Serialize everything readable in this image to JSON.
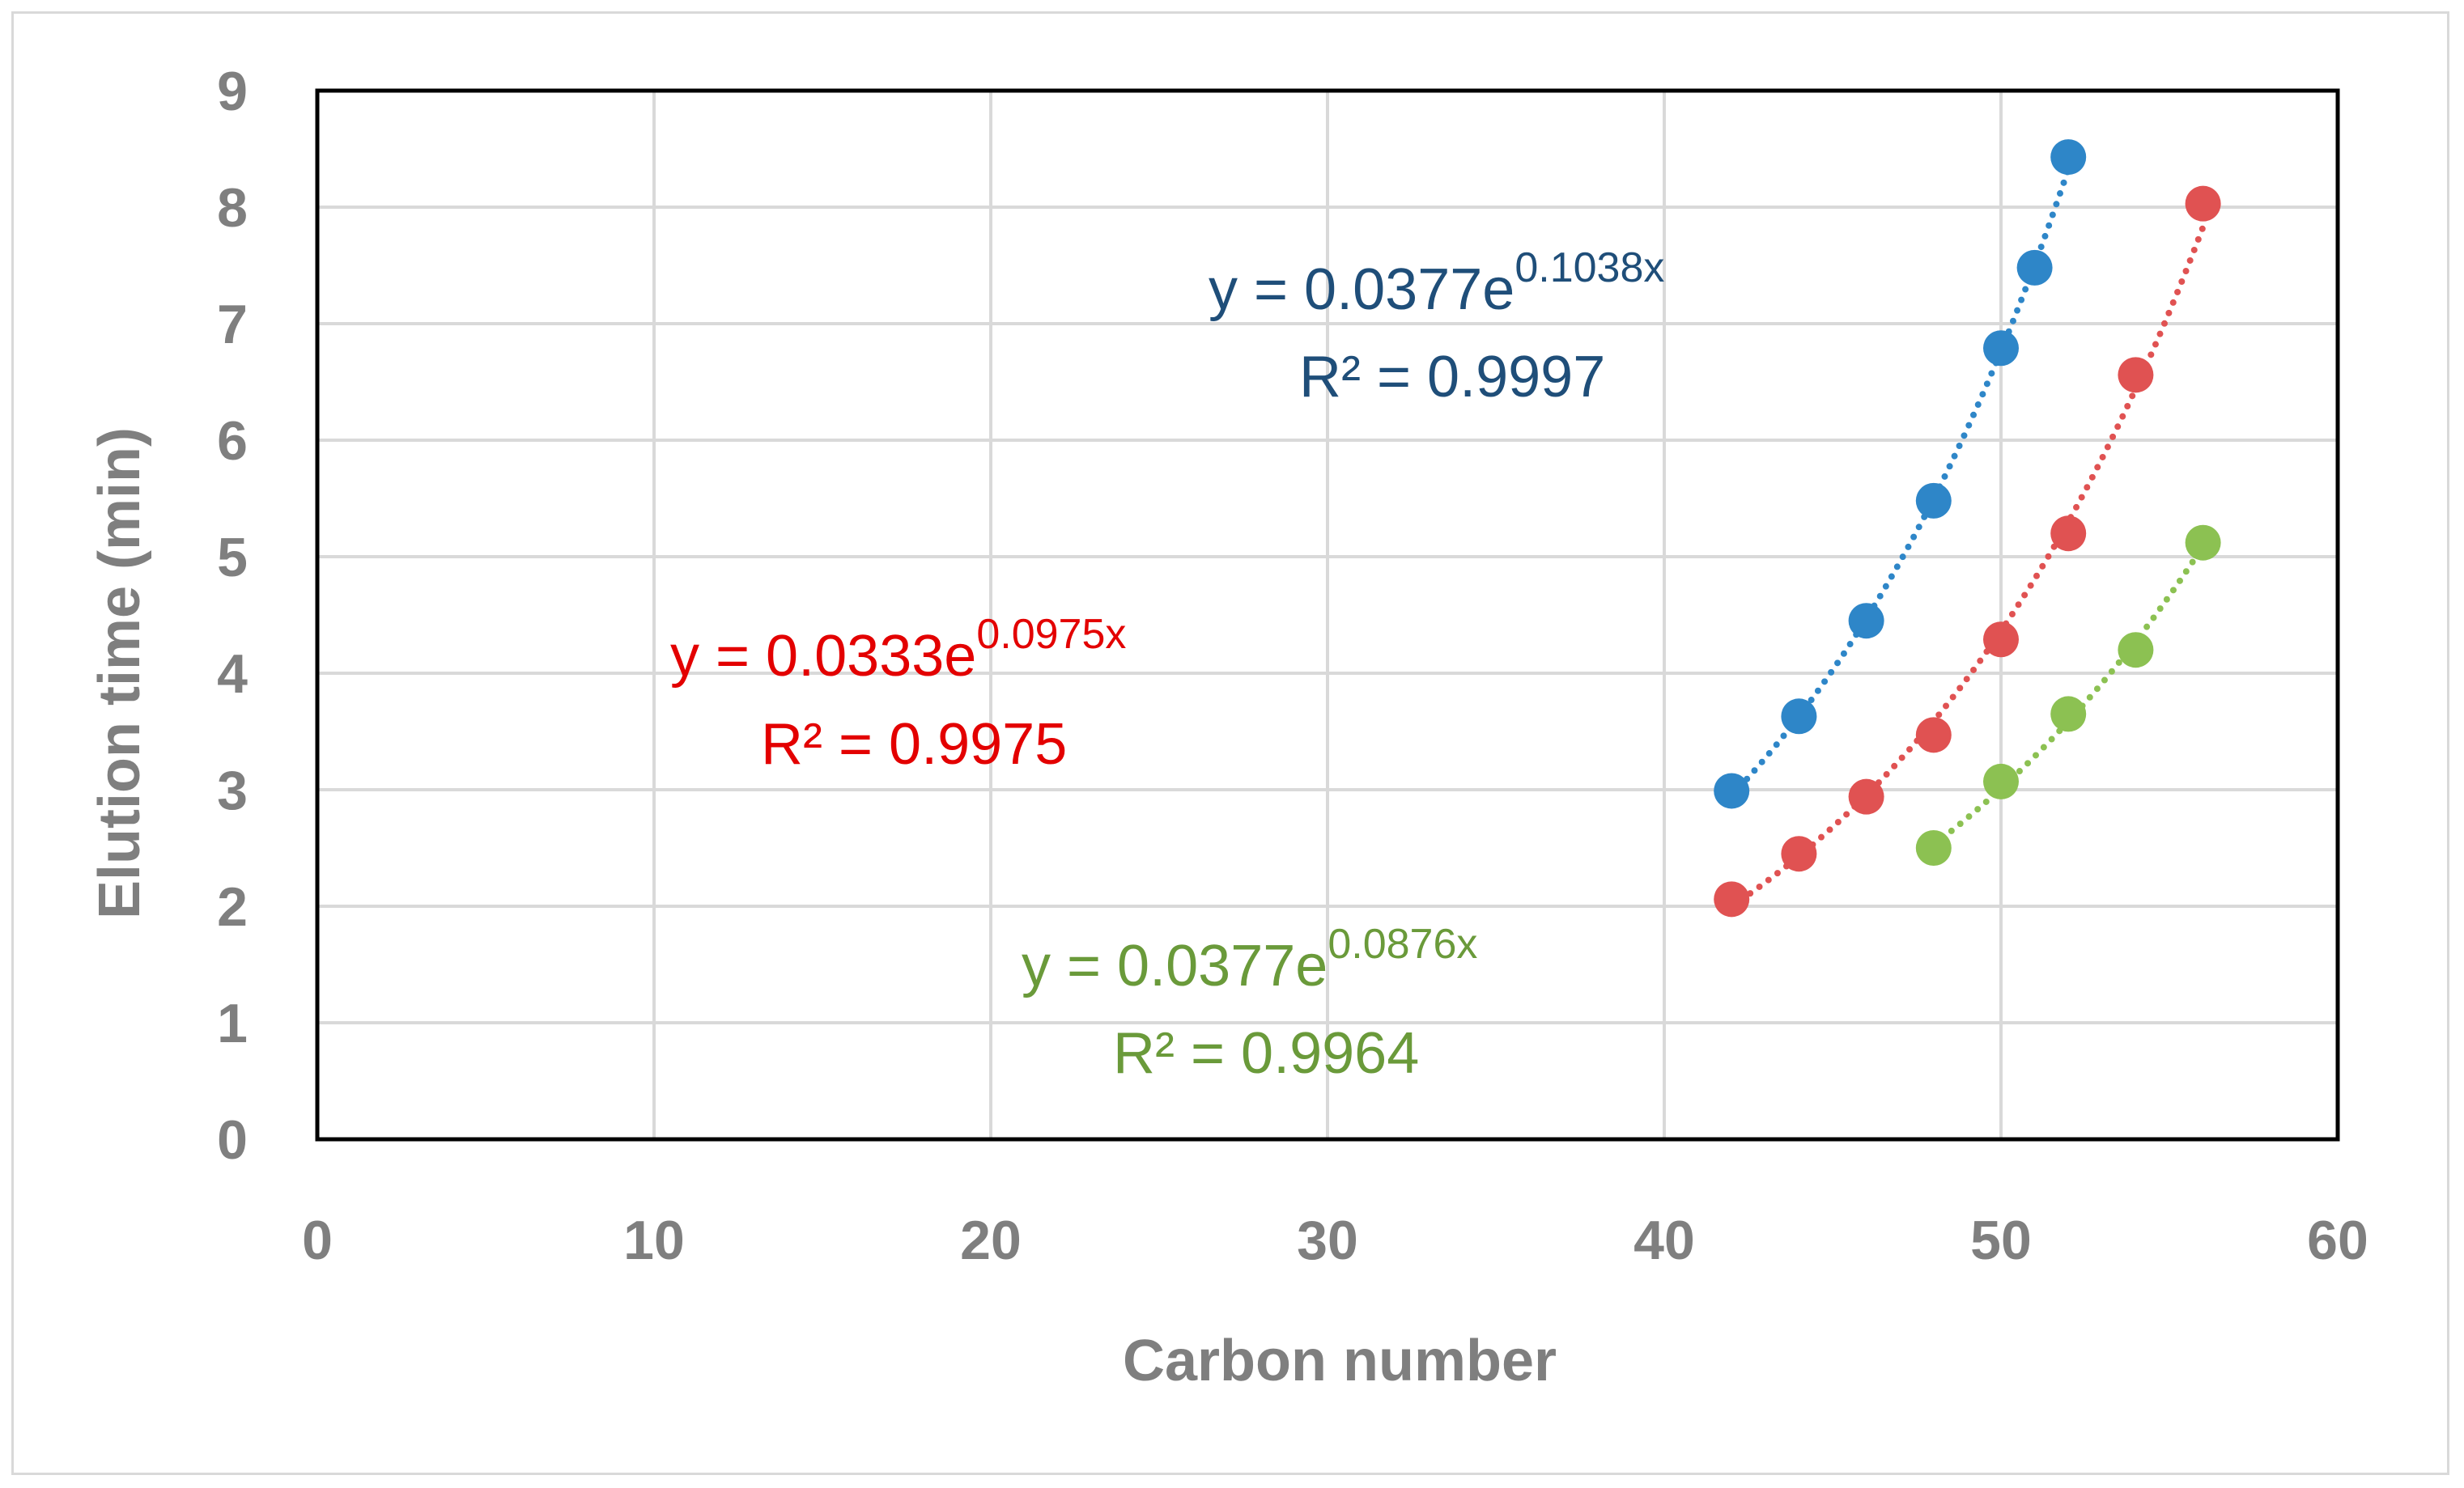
{
  "chart_data": {
    "type": "scatter",
    "xlabel": "Carbon number",
    "ylabel": "Elution time (min)",
    "xlim": [
      0,
      60
    ],
    "ylim": [
      0,
      9
    ],
    "x_ticks": [
      0,
      10,
      20,
      30,
      40,
      50,
      60
    ],
    "y_ticks": [
      0,
      1,
      2,
      3,
      4,
      5,
      6,
      7,
      8,
      9
    ],
    "grid": true,
    "series": [
      {
        "name": "blue",
        "color": "#2e86c8",
        "label_color": "#1f4e79",
        "x": [
          42,
          44,
          46,
          48,
          50,
          51,
          52
        ],
        "y": [
          2.99,
          3.63,
          4.45,
          5.48,
          6.79,
          7.48,
          8.43
        ],
        "trendline": {
          "type": "exponential",
          "a": 0.0377,
          "b": 0.1038,
          "x_range": [
            42,
            52
          ]
        },
        "equation": {
          "prefix": "y = 0.0377e",
          "exponent": "0.1038x",
          "r2": "R² = 0.9997"
        }
      },
      {
        "name": "red",
        "color": "#e05252",
        "label_color": "#e30000",
        "x": [
          42,
          44,
          46,
          48,
          50,
          52,
          54,
          56
        ],
        "y": [
          2.06,
          2.45,
          2.94,
          3.47,
          4.29,
          5.2,
          6.56,
          8.03
        ],
        "trendline": {
          "type": "exponential",
          "a": 0.0333,
          "b": 0.0975,
          "x_range": [
            42,
            56
          ]
        },
        "equation": {
          "prefix": "y = 0.0333e",
          "exponent": "0.0975x",
          "r2": "R² = 0.9975"
        }
      },
      {
        "name": "green",
        "color": "#8cc152",
        "label_color": "#6a9a3a",
        "x": [
          48,
          50,
          52,
          54,
          56
        ],
        "y": [
          2.5,
          3.07,
          3.65,
          4.2,
          5.12
        ],
        "trendline": {
          "type": "exponential",
          "a": 0.0377,
          "b": 0.0876,
          "x_range": [
            48,
            56
          ]
        },
        "equation": {
          "prefix": "y = 0.0377e",
          "exponent": "0.0876x",
          "r2": "R² = 0.9964"
        }
      }
    ]
  }
}
